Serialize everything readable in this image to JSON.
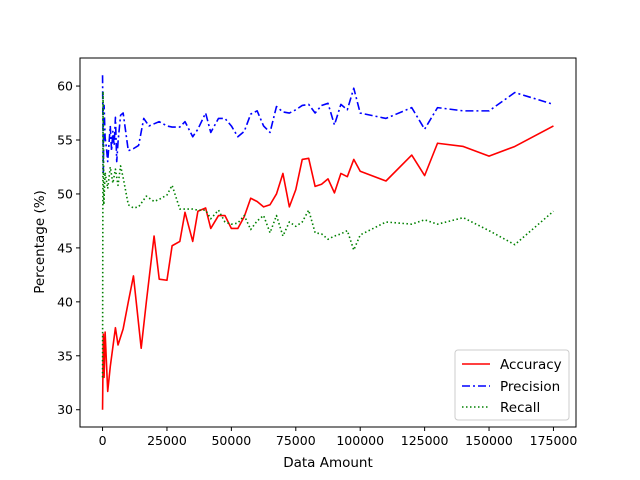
{
  "chart_data": {
    "type": "line",
    "title": "",
    "xlabel": "Data Amount",
    "ylabel": "Percentage (%)",
    "xlim": [
      -8750,
      183750
    ],
    "ylim": [
      28.4,
      62.6
    ],
    "xticks": [
      0,
      25000,
      50000,
      75000,
      100000,
      125000,
      150000,
      175000
    ],
    "xtick_labels": [
      "0",
      "25000",
      "50000",
      "75000",
      "100000",
      "125000",
      "150000",
      "175000"
    ],
    "yticks": [
      30,
      35,
      40,
      45,
      50,
      55,
      60
    ],
    "ytick_labels": [
      "30",
      "35",
      "40",
      "45",
      "50",
      "55",
      "60"
    ],
    "grid": false,
    "legend_position": "lower-right",
    "series": [
      {
        "name": "Accuracy",
        "color": "#ff0000",
        "style": "solid",
        "points": [
          [
            0,
            30.0
          ],
          [
            300,
            37.0
          ],
          [
            600,
            33.0
          ],
          [
            1000,
            37.2
          ],
          [
            2000,
            31.7
          ],
          [
            3000,
            34.0
          ],
          [
            5000,
            37.6
          ],
          [
            6000,
            36.0
          ],
          [
            8000,
            37.5
          ],
          [
            10000,
            40.0
          ],
          [
            12000,
            42.4
          ],
          [
            15000,
            35.7
          ],
          [
            17000,
            40.0
          ],
          [
            20000,
            46.1
          ],
          [
            22000,
            42.1
          ],
          [
            25000,
            42.0
          ],
          [
            27000,
            45.2
          ],
          [
            30000,
            45.6
          ],
          [
            32000,
            48.3
          ],
          [
            35000,
            45.6
          ],
          [
            37000,
            48.4
          ],
          [
            40000,
            48.7
          ],
          [
            42000,
            46.8
          ],
          [
            45000,
            48.0
          ],
          [
            47500,
            48.0
          ],
          [
            50000,
            46.8
          ],
          [
            52500,
            46.8
          ],
          [
            55000,
            47.9
          ],
          [
            57500,
            49.6
          ],
          [
            60000,
            49.3
          ],
          [
            62500,
            48.8
          ],
          [
            65000,
            49.0
          ],
          [
            67500,
            50.0
          ],
          [
            70000,
            51.9
          ],
          [
            72500,
            48.8
          ],
          [
            75000,
            50.4
          ],
          [
            77500,
            53.2
          ],
          [
            80000,
            53.3
          ],
          [
            82500,
            50.7
          ],
          [
            85000,
            50.9
          ],
          [
            87500,
            51.4
          ],
          [
            90000,
            50.1
          ],
          [
            92500,
            51.9
          ],
          [
            95000,
            51.6
          ],
          [
            97500,
            53.2
          ],
          [
            100000,
            52.1
          ],
          [
            110000,
            51.2
          ],
          [
            120000,
            53.6
          ],
          [
            125000,
            51.7
          ],
          [
            130000,
            54.7
          ],
          [
            140000,
            54.4
          ],
          [
            150000,
            53.5
          ],
          [
            160000,
            54.4
          ],
          [
            175000,
            56.3
          ]
        ]
      },
      {
        "name": "Precision",
        "color": "#0000ff",
        "style": "dashdot",
        "points": [
          [
            0,
            61.0
          ],
          [
            300,
            52.0
          ],
          [
            600,
            58.2
          ],
          [
            1000,
            55.2
          ],
          [
            1500,
            54.3
          ],
          [
            2000,
            53.0
          ],
          [
            3000,
            56.3
          ],
          [
            3500,
            54.0
          ],
          [
            4000,
            55.8
          ],
          [
            4500,
            54.5
          ],
          [
            5000,
            57.1
          ],
          [
            5500,
            53.0
          ],
          [
            6000,
            54.8
          ],
          [
            7000,
            57.3
          ],
          [
            8000,
            57.5
          ],
          [
            10000,
            54.0
          ],
          [
            12000,
            54.2
          ],
          [
            14000,
            54.5
          ],
          [
            16000,
            57.0
          ],
          [
            18000,
            56.3
          ],
          [
            20000,
            56.5
          ],
          [
            22000,
            56.7
          ],
          [
            25000,
            56.3
          ],
          [
            27000,
            56.2
          ],
          [
            30000,
            56.2
          ],
          [
            32000,
            56.7
          ],
          [
            35000,
            55.3
          ],
          [
            37000,
            56.0
          ],
          [
            40000,
            57.5
          ],
          [
            42000,
            55.7
          ],
          [
            45000,
            57.0
          ],
          [
            47500,
            57.0
          ],
          [
            50000,
            56.3
          ],
          [
            52500,
            55.3
          ],
          [
            55000,
            55.8
          ],
          [
            57500,
            57.4
          ],
          [
            60000,
            57.7
          ],
          [
            62500,
            56.3
          ],
          [
            65000,
            55.7
          ],
          [
            67500,
            58.1
          ],
          [
            70000,
            57.6
          ],
          [
            72500,
            57.5
          ],
          [
            75000,
            57.8
          ],
          [
            77500,
            58.2
          ],
          [
            80000,
            58.3
          ],
          [
            82500,
            57.5
          ],
          [
            85000,
            58.2
          ],
          [
            87500,
            58.4
          ],
          [
            90000,
            56.4
          ],
          [
            92500,
            58.3
          ],
          [
            95000,
            57.8
          ],
          [
            97500,
            59.8
          ],
          [
            100000,
            57.5
          ],
          [
            110000,
            57.0
          ],
          [
            120000,
            58.0
          ],
          [
            125000,
            56.0
          ],
          [
            130000,
            58.0
          ],
          [
            140000,
            57.7
          ],
          [
            150000,
            57.7
          ],
          [
            160000,
            59.4
          ],
          [
            175000,
            58.3
          ]
        ]
      },
      {
        "name": "Recall",
        "color": "#008000",
        "style": "dotted",
        "points": [
          [
            0,
            33.0
          ],
          [
            200,
            59.5
          ],
          [
            500,
            49.0
          ],
          [
            1000,
            52.0
          ],
          [
            2000,
            50.5
          ],
          [
            3000,
            52.5
          ],
          [
            4000,
            51.0
          ],
          [
            5000,
            52.3
          ],
          [
            6000,
            50.8
          ],
          [
            7000,
            52.6
          ],
          [
            8000,
            51.5
          ],
          [
            10000,
            49.0
          ],
          [
            12000,
            48.7
          ],
          [
            14000,
            48.8
          ],
          [
            17000,
            49.8
          ],
          [
            20000,
            49.3
          ],
          [
            22000,
            49.5
          ],
          [
            25000,
            49.9
          ],
          [
            27000,
            50.8
          ],
          [
            30000,
            48.6
          ],
          [
            32000,
            48.6
          ],
          [
            35000,
            48.6
          ],
          [
            37000,
            48.5
          ],
          [
            40000,
            48.5
          ],
          [
            42000,
            47.7
          ],
          [
            45000,
            48.5
          ],
          [
            47500,
            47.4
          ],
          [
            50000,
            47.2
          ],
          [
            52500,
            47.3
          ],
          [
            55000,
            48.0
          ],
          [
            57500,
            46.7
          ],
          [
            60000,
            47.5
          ],
          [
            62500,
            48.0
          ],
          [
            65000,
            46.4
          ],
          [
            67500,
            48.0
          ],
          [
            70000,
            46.1
          ],
          [
            72500,
            47.4
          ],
          [
            75000,
            47.0
          ],
          [
            77500,
            47.4
          ],
          [
            80000,
            48.5
          ],
          [
            82500,
            46.4
          ],
          [
            85000,
            46.3
          ],
          [
            87500,
            45.8
          ],
          [
            90000,
            46.1
          ],
          [
            92500,
            46.3
          ],
          [
            95000,
            46.6
          ],
          [
            97500,
            44.8
          ],
          [
            100000,
            46.2
          ],
          [
            110000,
            47.4
          ],
          [
            120000,
            47.2
          ],
          [
            125000,
            47.6
          ],
          [
            130000,
            47.2
          ],
          [
            140000,
            47.8
          ],
          [
            150000,
            46.6
          ],
          [
            160000,
            45.3
          ],
          [
            175000,
            48.4
          ]
        ]
      }
    ]
  }
}
